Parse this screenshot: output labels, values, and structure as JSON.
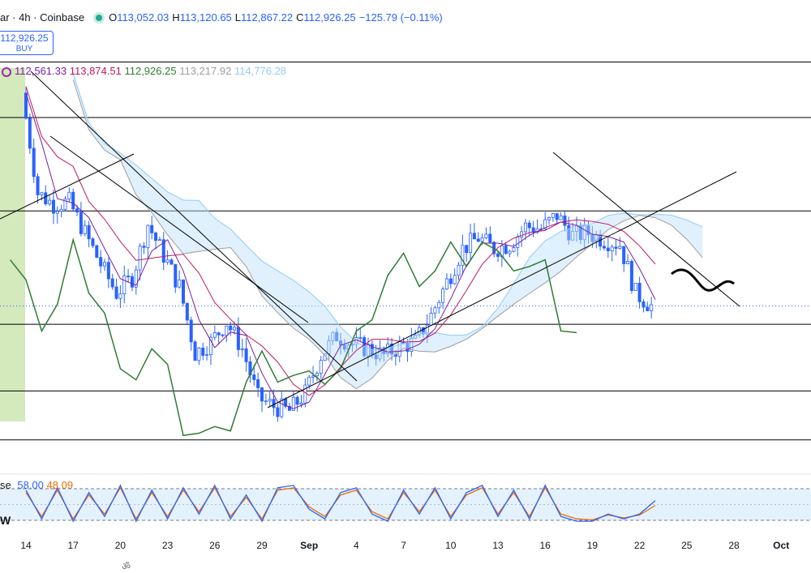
{
  "header": {
    "title": "ar · 4h · Coinbase",
    "o_label": "O",
    "o_value": "113,052.03",
    "h_label": "H",
    "h_value": "113,120.65",
    "l_label": "L",
    "l_value": "112,867.22",
    "c_label": "C",
    "c_value": "112,926.25",
    "change": "−125.79 (−0.11%)"
  },
  "order": {
    "price": "112,926.25",
    "label": "BUY"
  },
  "ichimoku": {
    "values": [
      "112,561.33",
      "113,874.51",
      "112,926.25",
      "113,217.92",
      "114,776.28"
    ],
    "colors": [
      "#7b1fa2",
      "#c2185b",
      "#2e7d32",
      "#9e9e9e",
      "#90caf9"
    ]
  },
  "stoch": {
    "label": "se",
    "k": "58.00",
    "d": "48.09",
    "k_color": "#2962ff",
    "d_color": "#ef6c00"
  },
  "x_axis": {
    "ticks": [
      "14",
      "17",
      "20",
      "23",
      "26",
      "29",
      "Sep",
      "4",
      "7",
      "10",
      "13",
      "16",
      "19",
      "22",
      "25",
      "28",
      "Oct"
    ]
  },
  "overlay_label": "W",
  "bottom_glyphs": "ॐ",
  "chart_data": {
    "type": "line",
    "title": "",
    "xlabel": "",
    "ylabel": "",
    "x": [
      "Aug 14",
      "Aug 15",
      "Aug 16",
      "Aug 17",
      "Aug 18",
      "Aug 19",
      "Aug 20",
      "Aug 21",
      "Aug 22",
      "Aug 23",
      "Aug 24",
      "Aug 25",
      "Aug 26",
      "Aug 27",
      "Aug 28",
      "Aug 29",
      "Aug 30",
      "Aug 31",
      "Sep 1",
      "Sep 2",
      "Sep 3",
      "Sep 4",
      "Sep 5",
      "Sep 6",
      "Sep 7",
      "Sep 8",
      "Sep 9",
      "Sep 10",
      "Sep 11",
      "Sep 12",
      "Sep 13",
      "Sep 14",
      "Sep 15",
      "Sep 16",
      "Sep 17",
      "Sep 18",
      "Sep 19",
      "Sep 20",
      "Sep 21",
      "Sep 22",
      "Sep 23"
    ],
    "ylim": [
      107000,
      124500
    ],
    "series": [
      {
        "values": [
          122500,
          118000,
          117500,
          117600,
          116200,
          114800,
          113500,
          114200,
          116600,
          115200,
          113800,
          110800,
          111300,
          112200,
          111000,
          108800,
          108400,
          108200,
          109000,
          110700,
          111600,
          111200,
          111000,
          110700,
          111100,
          111300,
          112500,
          114000,
          115500,
          116000,
          115500,
          115700,
          116500,
          116400,
          117000,
          116100,
          116200,
          115900,
          115700,
          113500,
          112926
        ]
      }
    ],
    "horizontal_levels": [
      123900,
      121400,
      117200,
      112100,
      109100,
      106900
    ],
    "stochastic": {
      "ylim": [
        0,
        100
      ],
      "k_values": [
        80,
        20,
        85,
        15,
        75,
        25,
        90,
        15,
        80,
        20,
        85,
        30,
        90,
        20,
        70,
        15,
        85,
        90,
        40,
        20,
        75,
        85,
        30,
        15,
        80,
        30,
        85,
        20,
        75,
        90,
        25,
        80,
        20,
        90,
        25,
        15,
        15,
        30,
        20,
        30,
        58
      ],
      "d_values": [
        75,
        25,
        80,
        20,
        70,
        30,
        85,
        20,
        75,
        25,
        80,
        35,
        85,
        25,
        65,
        20,
        80,
        85,
        45,
        25,
        70,
        80,
        35,
        20,
        75,
        35,
        80,
        25,
        70,
        85,
        30,
        75,
        25,
        85,
        30,
        20,
        18,
        28,
        22,
        28,
        48.09
      ]
    }
  }
}
